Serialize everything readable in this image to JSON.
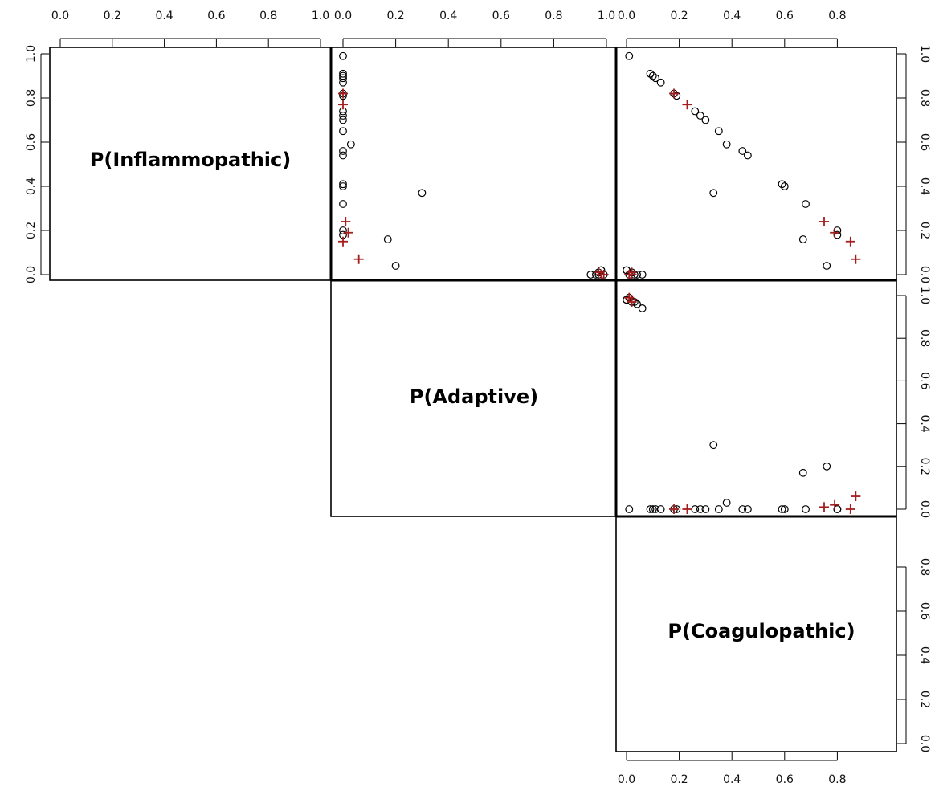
{
  "chart_data": {
    "type": "scatter",
    "subtype": "scatterplot-matrix-upper-triangle",
    "variables": [
      "P(Inflammopathic)",
      "P(Adaptive)",
      "P(Coagulopathic)"
    ],
    "axis_ticks": {
      "top_panel1": [
        "0.0",
        "0.2",
        "0.4",
        "0.6",
        "0.8",
        "1.0"
      ],
      "top_panel2": [
        "0.0",
        "0.2",
        "0.4",
        "0.6",
        "0.8",
        "1.0"
      ],
      "top_panel3": [
        "0.0",
        "0.2",
        "0.4",
        "0.6",
        "0.8"
      ],
      "right_row1": [
        "0.0",
        "0.2",
        "0.4",
        "0.6",
        "0.8",
        "1.0"
      ],
      "right_row2": [
        "0.0",
        "0.2",
        "0.4",
        "0.6",
        "0.8",
        "1.0"
      ],
      "right_row3": [
        "0.0",
        "0.2",
        "0.4",
        "0.6",
        "0.8"
      ],
      "bottom_panel3": [
        "0.0",
        "0.2",
        "0.4",
        "0.6",
        "0.8"
      ]
    },
    "xlim": [
      0,
      1
    ],
    "ylim": [
      0,
      1
    ],
    "colors": {
      "circle": "#000000",
      "plus": "#a51e1e",
      "frame": "#000000"
    },
    "series": [
      {
        "marker": "circle",
        "points": [
          [
            0.99,
            0.0,
            0.01
          ],
          [
            0.91,
            0.0,
            0.09
          ],
          [
            0.9,
            0.0,
            0.1
          ],
          [
            0.89,
            0.0,
            0.11
          ],
          [
            0.87,
            0.0,
            0.13
          ],
          [
            0.82,
            0.0,
            0.18
          ],
          [
            0.81,
            0.0,
            0.19
          ],
          [
            0.74,
            0.0,
            0.26
          ],
          [
            0.72,
            0.0,
            0.28
          ],
          [
            0.7,
            0.0,
            0.3
          ],
          [
            0.65,
            0.0,
            0.35
          ],
          [
            0.59,
            0.03,
            0.38
          ],
          [
            0.56,
            0.0,
            0.44
          ],
          [
            0.54,
            0.0,
            0.46
          ],
          [
            0.41,
            0.0,
            0.59
          ],
          [
            0.4,
            0.0,
            0.6
          ],
          [
            0.37,
            0.3,
            0.33
          ],
          [
            0.32,
            0.0,
            0.68
          ],
          [
            0.2,
            0.0,
            0.8
          ],
          [
            0.18,
            0.0,
            0.8
          ],
          [
            0.16,
            0.17,
            0.67
          ],
          [
            0.04,
            0.2,
            0.76
          ],
          [
            0.02,
            0.98,
            0.0
          ],
          [
            0.01,
            0.97,
            0.02
          ],
          [
            0.0,
            0.96,
            0.04
          ],
          [
            0.0,
            0.94,
            0.06
          ],
          [
            0.0,
            0.99,
            0.01
          ],
          [
            0.02,
            0.98,
            0.0
          ],
          [
            0.0,
            0.97,
            0.03
          ]
        ]
      },
      {
        "marker": "plus",
        "points": [
          [
            0.82,
            0.0,
            0.18
          ],
          [
            0.77,
            0.0,
            0.23
          ],
          [
            0.24,
            0.01,
            0.75
          ],
          [
            0.19,
            0.02,
            0.79
          ],
          [
            0.15,
            0.0,
            0.85
          ],
          [
            0.07,
            0.06,
            0.87
          ],
          [
            0.0,
            0.99,
            0.01
          ],
          [
            0.0,
            0.98,
            0.02
          ],
          [
            0.01,
            0.97,
            0.02
          ]
        ]
      }
    ]
  }
}
